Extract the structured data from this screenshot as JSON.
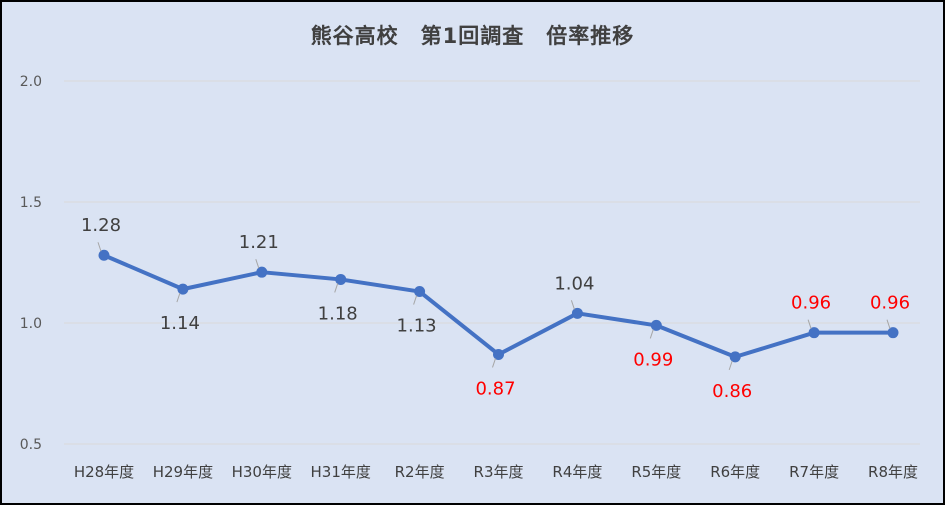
{
  "chart_data": {
    "type": "line",
    "title": "熊谷高校　第1回調査　倍率推移",
    "xlabel": "",
    "ylabel": "",
    "categories": [
      "H28年度",
      "H29年度",
      "H30年度",
      "H31年度",
      "R2年度",
      "R3年度",
      "R4年度",
      "R5年度",
      "R6年度",
      "R7年度",
      "R8年度"
    ],
    "series": [
      {
        "values": [
          1.28,
          1.14,
          1.21,
          1.18,
          1.13,
          0.87,
          1.04,
          0.99,
          0.86,
          0.96,
          0.96
        ],
        "value_labels": [
          "1.28",
          "1.14",
          "1.21",
          "1.18",
          "1.13",
          "0.87",
          "1.04",
          "0.99",
          "0.86",
          "0.96",
          "0.96"
        ],
        "color": "#4472c4"
      }
    ],
    "label_placement": [
      "above",
      "below",
      "above",
      "below",
      "below",
      "below",
      "above",
      "below",
      "below",
      "above",
      "above"
    ],
    "label_colors": [
      "#404040",
      "#404040",
      "#404040",
      "#404040",
      "#404040",
      "#ff0000",
      "#404040",
      "#ff0000",
      "#ff0000",
      "#ff0000",
      "#ff0000"
    ],
    "ylim": [
      0.5,
      2.0
    ],
    "yticks": [
      "0.5",
      "1.0",
      "1.5",
      "2.0"
    ],
    "grid": true,
    "legend": "none",
    "background_color": "#dae3f3",
    "gridline_color": "#d9d9d9"
  }
}
